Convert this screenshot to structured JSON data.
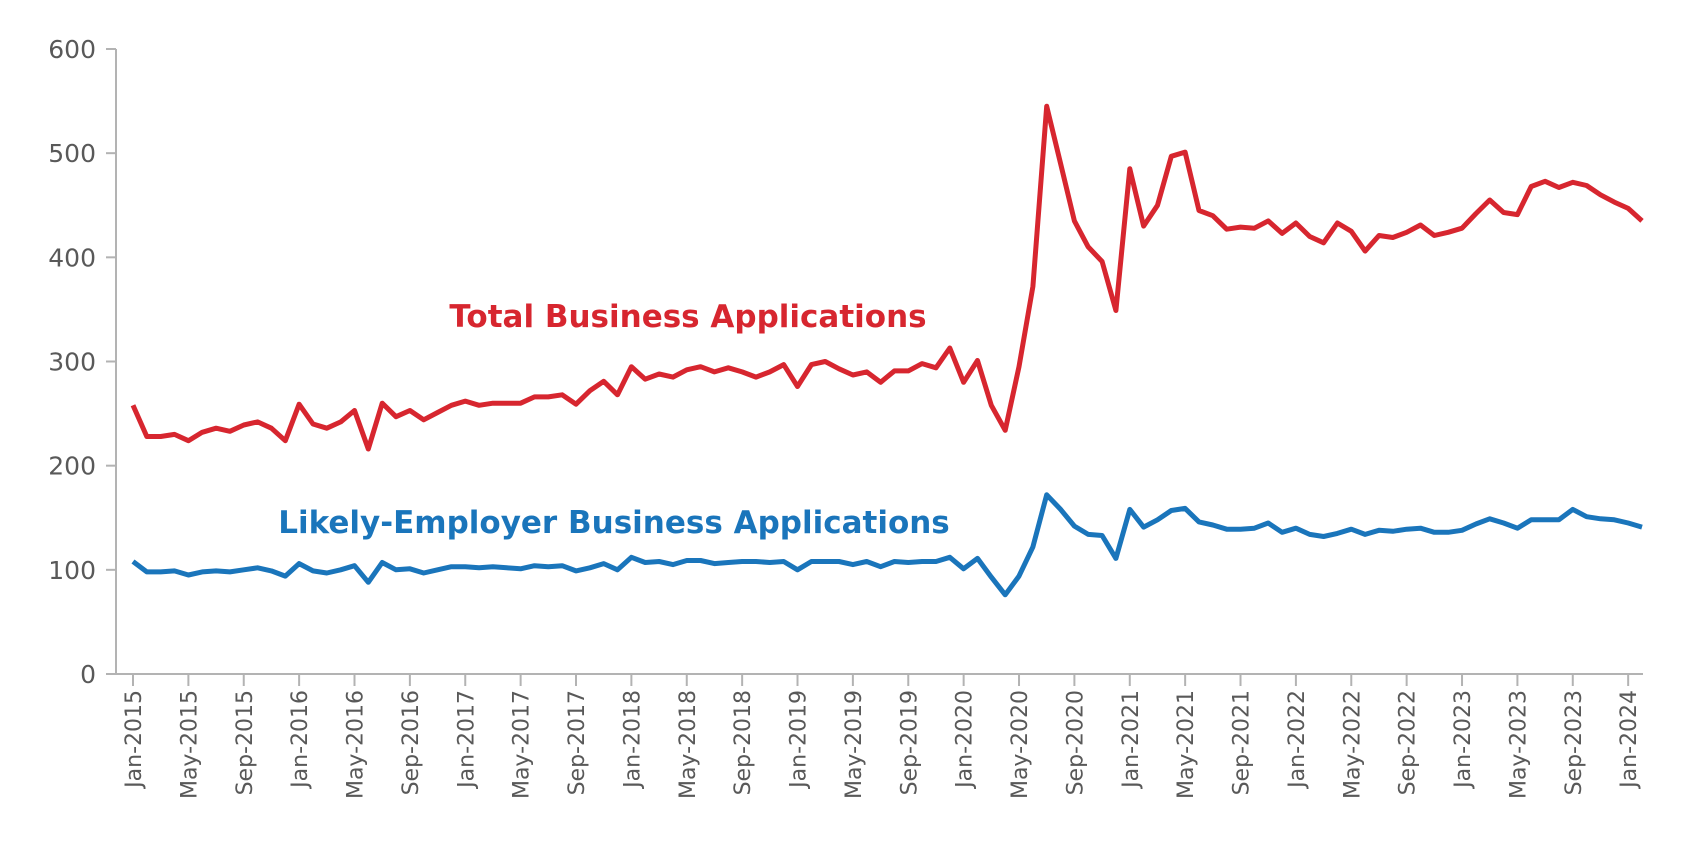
{
  "chart_data": {
    "type": "line",
    "categories": [
      "Jan-2015",
      null,
      null,
      null,
      "May-2015",
      null,
      null,
      null,
      "Sep-2015",
      null,
      null,
      null,
      "Jan-2016",
      null,
      null,
      null,
      "May-2016",
      null,
      null,
      null,
      "Sep-2016",
      null,
      null,
      null,
      "Jan-2017",
      null,
      null,
      null,
      "May-2017",
      null,
      null,
      null,
      "Sep-2017",
      null,
      null,
      null,
      "Jan-2018",
      null,
      null,
      null,
      "May-2018",
      null,
      null,
      null,
      "Sep-2018",
      null,
      null,
      null,
      "Jan-2019",
      null,
      null,
      null,
      "May-2019",
      null,
      null,
      null,
      "Sep-2019",
      null,
      null,
      null,
      "Jan-2020",
      null,
      null,
      null,
      "May-2020",
      null,
      null,
      null,
      "Sep-2020",
      null,
      null,
      null,
      "Jan-2021",
      null,
      null,
      null,
      "May-2021",
      null,
      null,
      null,
      "Sep-2021",
      null,
      null,
      null,
      "Jan-2022",
      null,
      null,
      null,
      "May-2022",
      null,
      null,
      null,
      "Sep-2022",
      null,
      null,
      null,
      "Jan-2023",
      null,
      null,
      null,
      "May-2023",
      null,
      null,
      null,
      "Sep-2023",
      null,
      null,
      null,
      "Jan-2024",
      null
    ],
    "series": [
      {
        "name": "Total Business Applications",
        "color": "#d7262f",
        "values": [
          258,
          228,
          228,
          230,
          224,
          232,
          236,
          233,
          239,
          242,
          236,
          224,
          259,
          240,
          236,
          242,
          253,
          216,
          260,
          247,
          253,
          244,
          251,
          258,
          262,
          258,
          260,
          260,
          260,
          266,
          266,
          268,
          259,
          272,
          281,
          268,
          295,
          283,
          288,
          285,
          292,
          295,
          290,
          294,
          290,
          285,
          290,
          297,
          276,
          297,
          300,
          293,
          287,
          290,
          280,
          291,
          291,
          298,
          294,
          313,
          280,
          301,
          258,
          234,
          295,
          372,
          545,
          490,
          435,
          410,
          396,
          349,
          485,
          430,
          450,
          497,
          501,
          445,
          440,
          427,
          429,
          428,
          435,
          423,
          433,
          420,
          414,
          433,
          425,
          406,
          421,
          419,
          424,
          431,
          421,
          424,
          428,
          442,
          455,
          443,
          441,
          468,
          473,
          467,
          472,
          469,
          460,
          453,
          447,
          435
        ]
      },
      {
        "name": "Likely-Employer Business Applications",
        "color": "#1a75bb",
        "values": [
          108,
          98,
          98,
          99,
          95,
          98,
          99,
          98,
          100,
          102,
          99,
          94,
          106,
          99,
          97,
          100,
          104,
          88,
          107,
          100,
          101,
          97,
          100,
          103,
          103,
          102,
          103,
          102,
          101,
          104,
          103,
          104,
          99,
          102,
          106,
          100,
          112,
          107,
          108,
          105,
          109,
          109,
          106,
          107,
          108,
          108,
          107,
          108,
          100,
          108,
          108,
          108,
          105,
          108,
          103,
          108,
          107,
          108,
          108,
          112,
          101,
          111,
          93,
          76,
          94,
          122,
          172,
          158,
          142,
          134,
          133,
          111,
          158,
          141,
          148,
          157,
          159,
          146,
          143,
          139,
          139,
          140,
          145,
          136,
          140,
          134,
          132,
          135,
          139,
          134,
          138,
          137,
          139,
          140,
          136,
          136,
          138,
          144,
          149,
          145,
          140,
          148,
          148,
          148,
          158,
          151,
          149,
          148,
          145,
          141
        ]
      }
    ],
    "ylim": [
      0,
      600
    ],
    "yticks": [
      0,
      100,
      200,
      300,
      400,
      500,
      600
    ]
  }
}
